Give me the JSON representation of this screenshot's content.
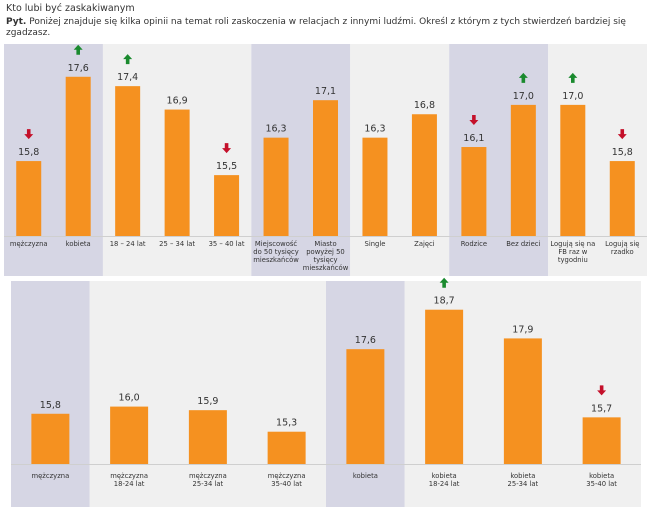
{
  "header": {
    "title": "Kto lubi być zaskakiwanym",
    "question_label": "Pyt.",
    "question_text": " Poniżej znajduje się kilka opinii na temat roli zaskoczenia w relacjach z innymi ludźmi. Określ z którym z tych stwierdzeń bardziej się zgadzasz."
  },
  "colors": {
    "bar": "#f59120",
    "shade": "#d6d6e4",
    "light": "#f0f0f0",
    "up": "#1a8a2e",
    "down": "#c4102a"
  },
  "chart_data": [
    {
      "type": "bar",
      "title": "",
      "categories": [
        "mężczyzna",
        "kobieta",
        "18 – 24 lat",
        "25 – 34 lat",
        "35 – 40 lat",
        "Miejscowość do 50 tysięcy mieszkańców",
        "Miasto powyżej 50 tysięcy mieszkańców",
        "Single",
        "Zajęci",
        "Rodzice",
        "Bez dzieci",
        "Logują się na FB raz w tygodniu",
        "Logują się rzadko"
      ],
      "category_lines": [
        [
          "mężczyzna"
        ],
        [
          "kobieta"
        ],
        [
          "18 – 24 lat"
        ],
        [
          "25 – 34 lat"
        ],
        [
          "35 – 40 lat"
        ],
        [
          "Miejscowość",
          "do 50 tysięcy",
          "mieszkańców"
        ],
        [
          "Miasto",
          "powyżej 50",
          "tysięcy",
          "mieszkańców"
        ],
        [
          "Single"
        ],
        [
          "Zajęci"
        ],
        [
          "Rodzice"
        ],
        [
          "Bez dzieci"
        ],
        [
          "Logują się na",
          "FB raz w",
          "tygodniu"
        ],
        [
          "Logują się",
          "rzadko"
        ]
      ],
      "values": [
        15.8,
        17.6,
        17.4,
        16.9,
        15.5,
        16.3,
        17.1,
        16.3,
        16.8,
        16.1,
        17.0,
        17.0,
        15.8
      ],
      "labels": [
        "15,8",
        "17,6",
        "17,4",
        "16,9",
        "15,5",
        "16,3",
        "17,1",
        "16,3",
        "16,8",
        "16,1",
        "17,0",
        "17,0",
        "15,8"
      ],
      "arrows": [
        "down",
        "up",
        "up",
        "",
        "down",
        "",
        "",
        "",
        "",
        "down",
        "up",
        "up",
        "down"
      ],
      "groups": [
        {
          "start": 0,
          "count": 2,
          "shade": "dark"
        },
        {
          "start": 2,
          "count": 3,
          "shade": "light"
        },
        {
          "start": 5,
          "count": 2,
          "shade": "dark"
        },
        {
          "start": 7,
          "count": 2,
          "shade": "light"
        },
        {
          "start": 9,
          "count": 2,
          "shade": "dark"
        },
        {
          "start": 11,
          "count": 2,
          "shade": "light"
        }
      ],
      "ylim": [
        14.2,
        18.3
      ]
    },
    {
      "type": "bar",
      "title": "",
      "categories": [
        "mężczyzna",
        "mężczyzna 18-24 lat",
        "mężczyzna 25-34 lat",
        "mężczyzna 35-40 lat",
        "kobieta",
        "kobieta 18-24 lat",
        "kobieta 25-34 lat",
        "kobieta 35-40 lat"
      ],
      "category_lines": [
        [
          "mężczyzna"
        ],
        [
          "mężczyzna",
          "18-24 lat"
        ],
        [
          "mężczyzna",
          "25-34 lat"
        ],
        [
          "mężczyzna",
          "35-40 lat"
        ],
        [
          "kobieta"
        ],
        [
          "kobieta",
          "18-24 lat"
        ],
        [
          "kobieta",
          "25-34 lat"
        ],
        [
          "kobieta",
          "35-40 lat"
        ]
      ],
      "values": [
        15.8,
        16.0,
        15.9,
        15.3,
        17.6,
        18.7,
        17.9,
        15.7
      ],
      "labels": [
        "15,8",
        "16,0",
        "15,9",
        "15,3",
        "17,6",
        "18,7",
        "17,9",
        "15,7"
      ],
      "arrows": [
        "",
        "",
        "",
        "",
        "",
        "up",
        "",
        "down"
      ],
      "groups": [
        {
          "start": 0,
          "count": 1,
          "shade": "dark"
        },
        {
          "start": 1,
          "count": 3,
          "shade": "light"
        },
        {
          "start": 4,
          "count": 1,
          "shade": "dark"
        },
        {
          "start": 5,
          "count": 3,
          "shade": "light"
        }
      ],
      "ylim": [
        14.4,
        19.5
      ]
    }
  ]
}
